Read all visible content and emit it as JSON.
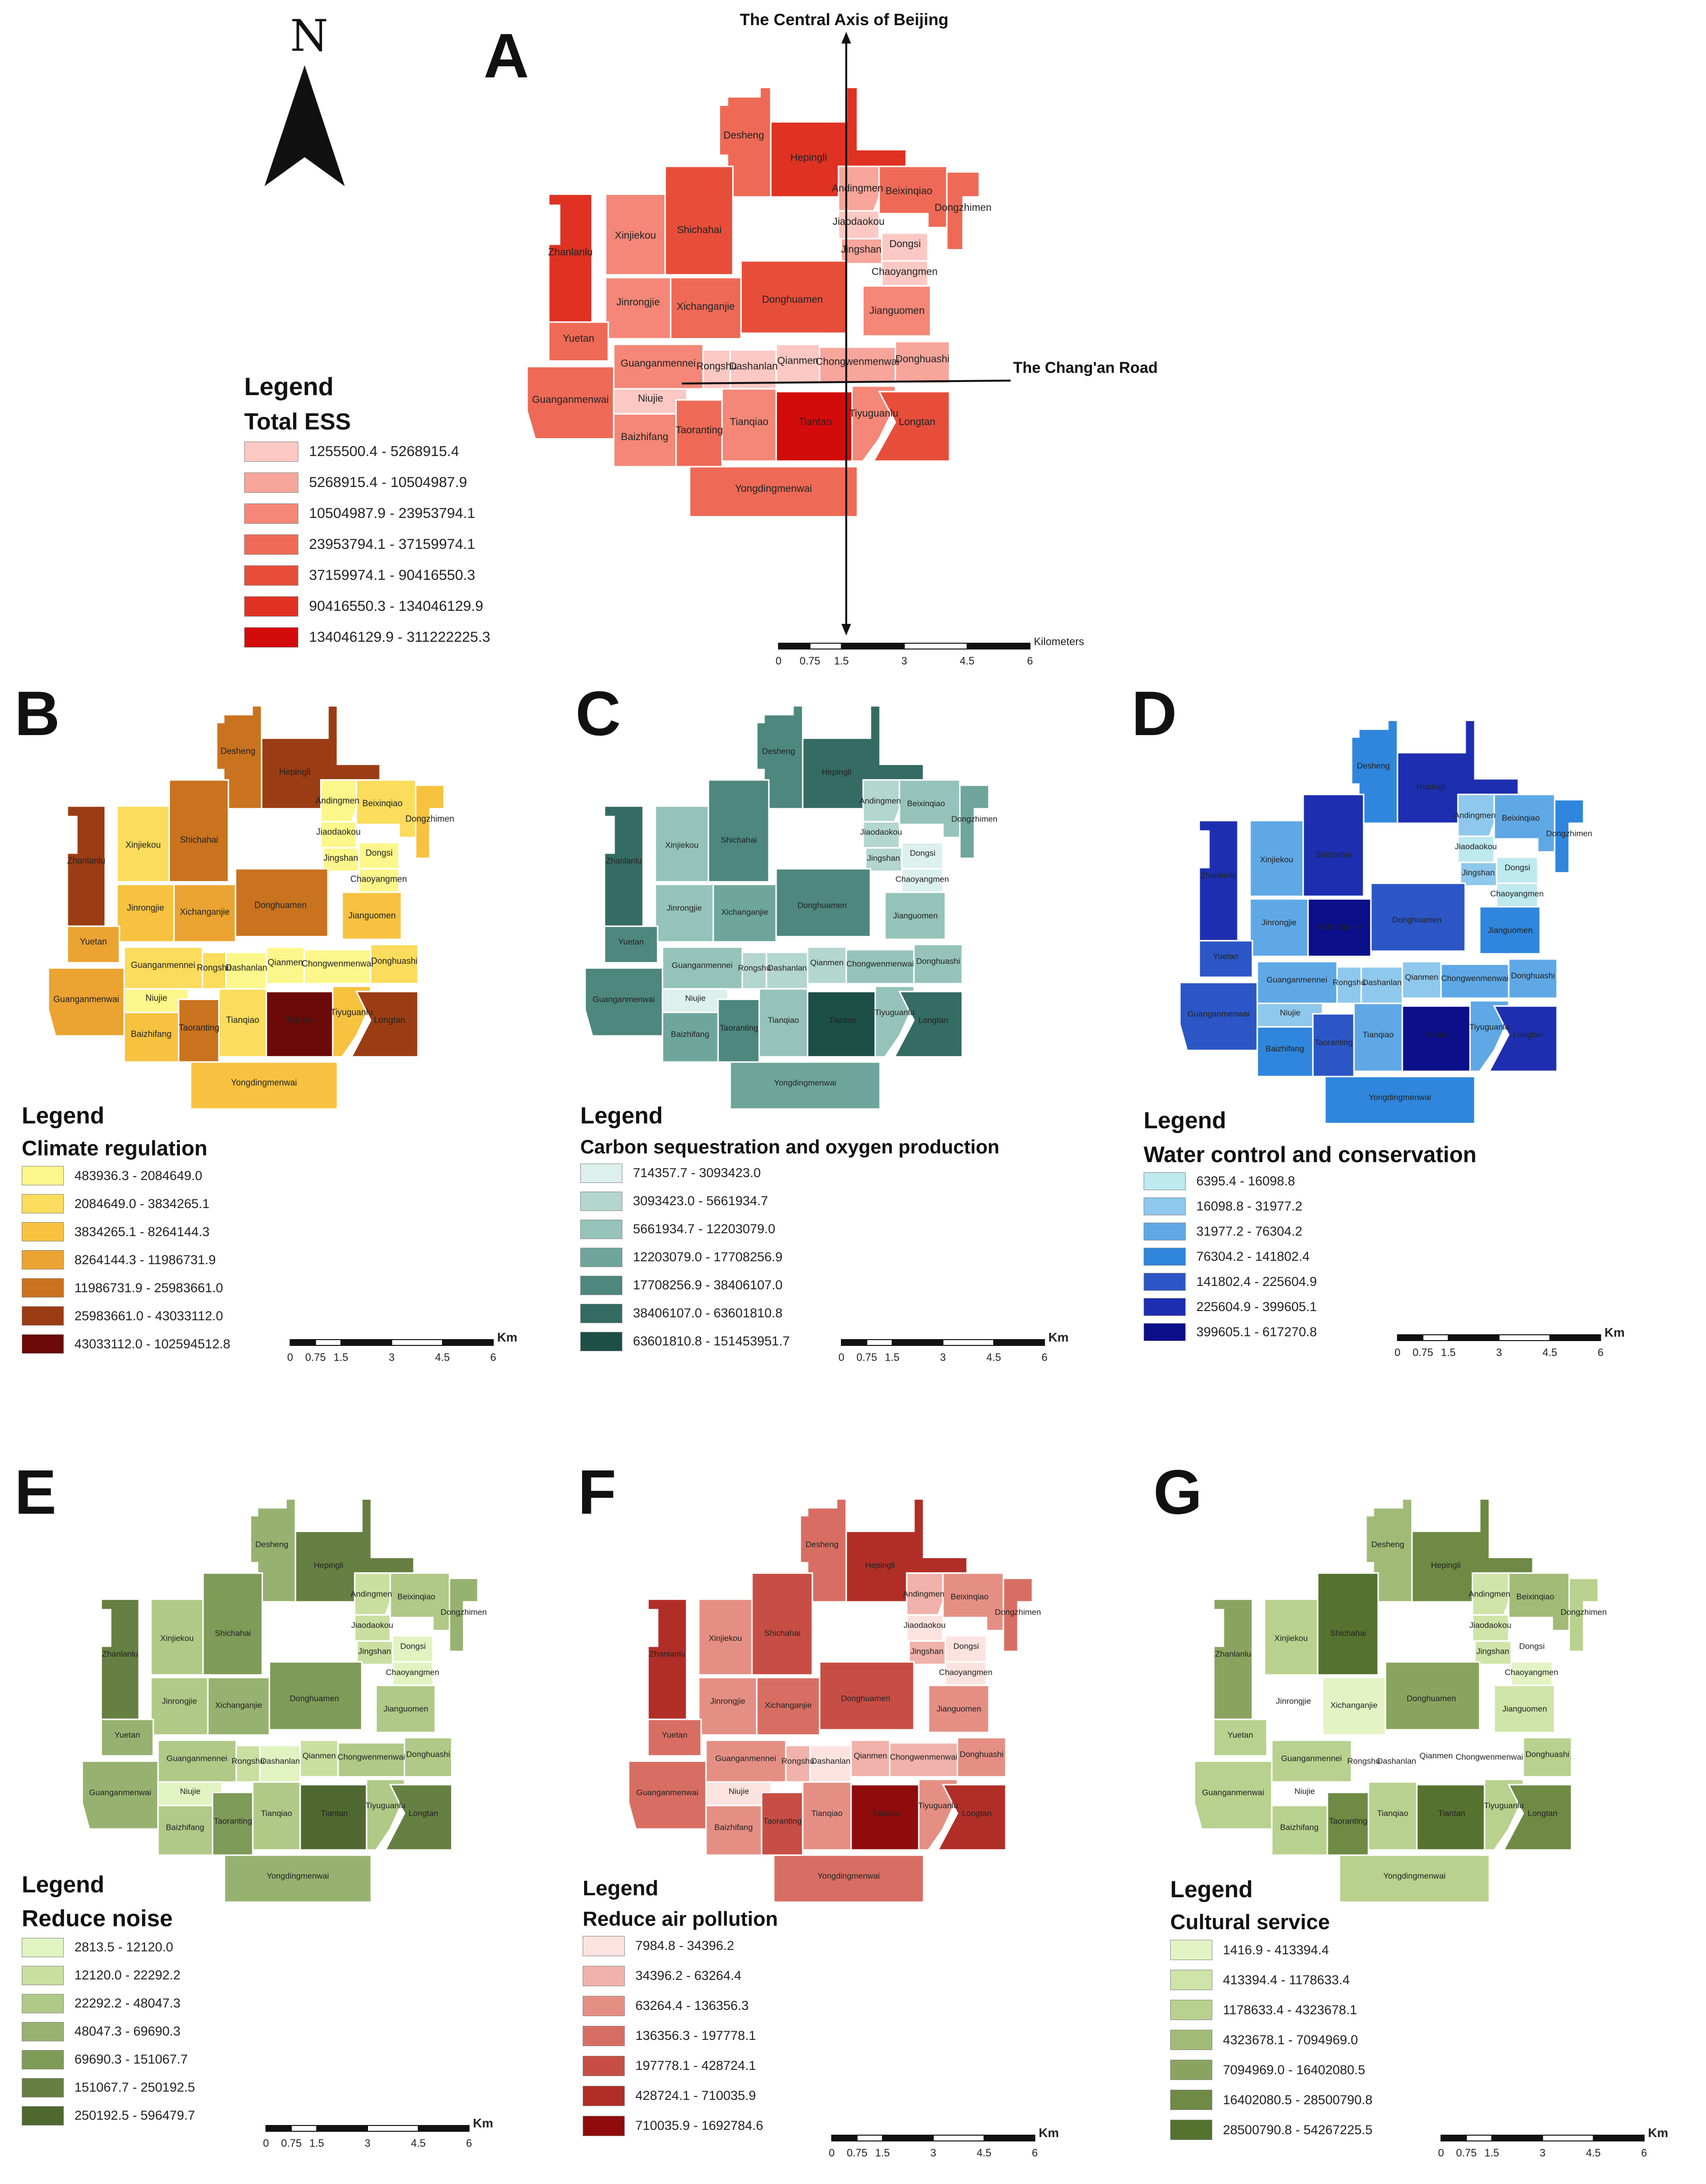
{
  "panels": [
    {
      "letter": "A",
      "legend_title": "Legend",
      "subtitle": "Total ESS",
      "colors": [
        "#fcc8c3",
        "#f8a59b",
        "#f48777",
        "#ee6a56",
        "#e74e3a",
        "#df3222",
        "#d40b0b"
      ],
      "classes": [
        "1255500.4 - 5268915.4",
        "5268915.4 - 10504987.9",
        "10504987.9 - 23953794.1",
        "23953794.1 - 37159974.1",
        "37159974.1 - 90416550.3",
        "90416550.3 - 134046129.9",
        "134046129.9 - 311222225.3"
      ],
      "scale_unit": "Kilometers",
      "scale_ticks": [
        "0",
        "0.75",
        "1.5",
        "3",
        "4.5",
        "6"
      ]
    },
    {
      "letter": "B",
      "legend_title": "Legend",
      "subtitle": "Climate regulation",
      "colors": [
        "#fdf68a",
        "#fbdc5c",
        "#f7c240",
        "#eba332",
        "#c9731f",
        "#9b3d14",
        "#6b0a08"
      ],
      "classes": [
        "483936.3 - 2084649.0",
        "2084649.0 - 3834265.1",
        "3834265.1 - 8264144.3",
        "8264144.3 - 11986731.9",
        "11986731.9 - 25983661.0",
        "25983661.0 - 43033112.0",
        "43033112.0 - 102594512.8"
      ],
      "scale_unit": "Km",
      "scale_ticks": [
        "0",
        "0.75",
        "1.5",
        "3",
        "4.5",
        "6"
      ]
    },
    {
      "letter": "C",
      "legend_title": "Legend",
      "subtitle": "Carbon sequestration and oxygen production",
      "colors": [
        "#dcf0ec",
        "#b3d6cf",
        "#95c3b9",
        "#6fa69c",
        "#4d877e",
        "#346b62",
        "#1c4f46"
      ],
      "classes": [
        "714357.7 - 3093423.0",
        "3093423.0 - 5661934.7",
        "5661934.7 - 12203079.0",
        "12203079.0 - 17708256.9",
        "17708256.9 - 38406107.0",
        "38406107.0 - 63601810.8",
        "63601810.8 - 151453951.7"
      ],
      "scale_unit": "Km",
      "scale_ticks": [
        "0",
        "0.75",
        "1.5",
        "3",
        "4.5",
        "6"
      ]
    },
    {
      "letter": "D",
      "legend_title": "Legend",
      "subtitle": "Water control and conservation",
      "colors": [
        "#bde9ef",
        "#8ec8ec",
        "#5fa8e6",
        "#2f86dc",
        "#2c56c6",
        "#1d2fb0",
        "#0b0f8a"
      ],
      "classes": [
        "6395.4 - 16098.8",
        "16098.8 - 31977.2",
        "31977.2 - 76304.2",
        "76304.2 - 141802.4",
        "141802.4 - 225604.9",
        "225604.9 - 399605.1",
        "399605.1 - 617270.8"
      ],
      "scale_unit": "Km",
      "scale_ticks": [
        "0",
        "0.75",
        "1.5",
        "3",
        "4.5",
        "6"
      ]
    },
    {
      "letter": "E",
      "legend_title": "Legend",
      "subtitle": "Reduce noise",
      "colors": [
        "#e2f3c2",
        "#c9dfa0",
        "#b0c987",
        "#97b270",
        "#7e9b58",
        "#667f42",
        "#4f6830"
      ],
      "classes": [
        "2813.5 - 12120.0",
        "12120.0 - 22292.2",
        "22292.2 - 48047.3",
        "48047.3 - 69690.3",
        "69690.3 - 151067.7",
        "151067.7 - 250192.5",
        "250192.5 - 596479.7"
      ],
      "scale_unit": "Km",
      "scale_ticks": [
        "0",
        "0.75",
        "1.5",
        "3",
        "4.5",
        "6"
      ]
    },
    {
      "letter": "F",
      "legend_title": "Legend",
      "subtitle": "Reduce air pollution",
      "colors": [
        "#fde3e0",
        "#f0b2aa",
        "#e58f84",
        "#d86e63",
        "#c74e44",
        "#b12e27",
        "#900c0c"
      ],
      "classes": [
        "7984.8 - 34396.2",
        "34396.2 - 63264.4",
        "63264.4 - 136356.3",
        "136356.3 - 197778.1",
        "197778.1 - 428724.1",
        "428724.1 - 710035.9",
        "710035.9 - 1692784.6"
      ],
      "scale_unit": "Km",
      "scale_ticks": [
        "0",
        "0.75",
        "1.5",
        "3",
        "4.5",
        "6"
      ]
    },
    {
      "letter": "G",
      "legend_title": "Legend",
      "subtitle": "Cultural service",
      "colors": [
        "#e4f3c4",
        "#cfe4a8",
        "#b8d18e",
        "#a1bb77",
        "#8aa460",
        "#6e8a44",
        "#56722f"
      ],
      "classes": [
        "1416.9 - 413394.4",
        "413394.4 - 1178633.4",
        "1178633.4 - 4323678.1",
        "4323678.1 - 7094969.0",
        "7094969.0 - 16402080.5",
        "16402080.5 - 28500790.8",
        "28500790.8 - 54267225.5"
      ],
      "scale_unit": "Km",
      "scale_ticks": [
        "0",
        "0.75",
        "1.5",
        "3",
        "4.5",
        "6"
      ]
    }
  ],
  "subdistricts": [
    "Desheng",
    "Hepingli",
    "Andingmen",
    "Jiaodaokou",
    "Jingshan",
    "Beixinqiao",
    "Dongzhimen",
    "Dongsi",
    "Chaoyangmen",
    "Zhanlanlu",
    "Xinjiekou",
    "Shichahai",
    "Xichanganjie",
    "Jinrongjie",
    "Donghuamen",
    "Jianguomen",
    "Yuetan",
    "Guanganmennei",
    "Rongshu",
    "Dashanlan",
    "Qianmen",
    "Chongwenmenwai",
    "Donghuashi",
    "Guanganmenwai",
    "Niujie",
    "Baizhifang",
    "Taoranting",
    "Tianqiao",
    "Tiantan",
    "Tiyuguanlu",
    "Longtan",
    "Yongdingmenwai"
  ],
  "class_index": {
    "A": [
      3,
      5,
      1,
      0,
      1,
      3,
      3,
      0,
      0,
      5,
      2,
      4,
      3,
      2,
      4,
      2,
      3,
      2,
      0,
      0,
      0,
      1,
      1,
      3,
      0,
      2,
      3,
      2,
      6,
      2,
      4,
      3
    ],
    "B": [
      4,
      5,
      0,
      0,
      0,
      1,
      2,
      0,
      0,
      5,
      1,
      4,
      3,
      2,
      4,
      2,
      3,
      1,
      1,
      0,
      0,
      0,
      1,
      3,
      0,
      2,
      4,
      1,
      6,
      2,
      5,
      2
    ],
    "C": [
      4,
      5,
      1,
      1,
      1,
      2,
      3,
      0,
      0,
      5,
      2,
      4,
      3,
      2,
      4,
      2,
      4,
      2,
      1,
      1,
      1,
      2,
      2,
      4,
      0,
      3,
      4,
      2,
      6,
      2,
      5,
      3
    ],
    "D": [
      3,
      5,
      1,
      0,
      1,
      2,
      3,
      0,
      0,
      5,
      2,
      5,
      6,
      2,
      4,
      3,
      4,
      2,
      1,
      1,
      1,
      2,
      2,
      4,
      1,
      3,
      4,
      2,
      6,
      2,
      5,
      3
    ],
    "E": [
      3,
      5,
      1,
      1,
      1,
      2,
      3,
      0,
      0,
      5,
      2,
      4,
      3,
      2,
      4,
      2,
      3,
      2,
      1,
      0,
      1,
      2,
      2,
      3,
      0,
      2,
      4,
      2,
      6,
      2,
      5,
      3
    ],
    "F": [
      3,
      5,
      1,
      0,
      1,
      2,
      3,
      0,
      0,
      5,
      2,
      4,
      3,
      2,
      4,
      2,
      3,
      2,
      1,
      0,
      1,
      1,
      2,
      3,
      0,
      2,
      4,
      2,
      6,
      2,
      5,
      3
    ],
    "G": [
      3,
      5,
      1,
      1,
      1,
      3,
      2,
      -1,
      0,
      4,
      2,
      6,
      0,
      -1,
      4,
      1,
      2,
      2,
      -1,
      -1,
      -1,
      -1,
      2,
      2,
      -1,
      2,
      5,
      2,
      6,
      2,
      5,
      2
    ]
  },
  "map_a": {
    "axis_label": "The Central Axis of Beijing",
    "road_label": "The Chang'an Road",
    "north": "N"
  }
}
